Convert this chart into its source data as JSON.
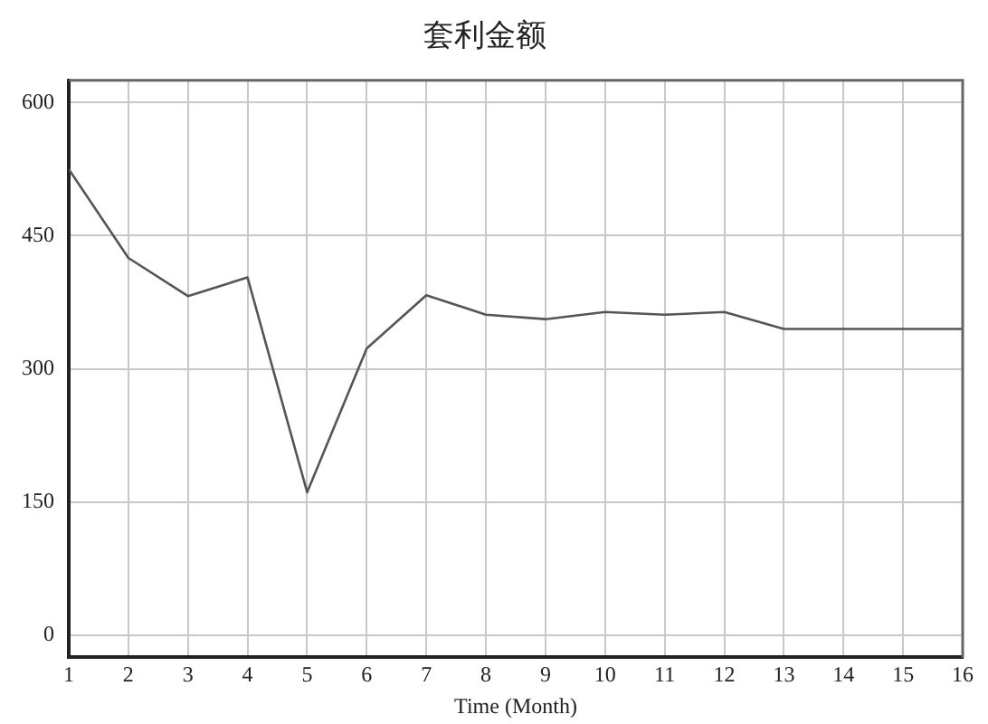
{
  "chart_data": {
    "type": "line",
    "title": "套利金额",
    "xlabel": "Time (Month)",
    "x": [
      1,
      2,
      3,
      4,
      5,
      6,
      7,
      8,
      9,
      10,
      11,
      12,
      13,
      14,
      15,
      16
    ],
    "series": [
      {
        "color": "#555555",
        "values": [
          525,
          425,
          382,
          403,
          161,
          323,
          383,
          361,
          356,
          364,
          361,
          364,
          345,
          345,
          345,
          345
        ]
      }
    ],
    "xlim": [
      1,
      16
    ],
    "xticks": [
      1,
      2,
      3,
      4,
      5,
      6,
      7,
      8,
      9,
      10,
      11,
      12,
      13,
      14,
      15,
      16
    ],
    "ylim": [
      -25,
      625
    ],
    "yticks": [
      0,
      150,
      300,
      450,
      600
    ],
    "grid": true,
    "legend": false,
    "marker": "none",
    "line_style": "solid"
  }
}
